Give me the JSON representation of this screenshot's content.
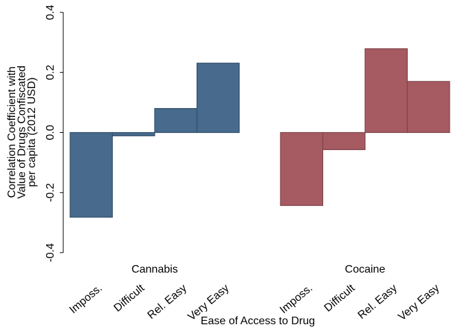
{
  "chart_data": {
    "type": "bar",
    "ylabel": [
      "Correlation Coefficient with",
      "Value of Drugs Confiscated",
      "per capita (2012 USD)"
    ],
    "xlabel": "Ease of Access to Drug",
    "categories": [
      "Imposs.",
      "Difficult",
      "Rel. Easy",
      "Very Easy"
    ],
    "series": [
      {
        "name": "Cannabis",
        "color": "#476a8d",
        "values": [
          -0.282,
          -0.011,
          0.08,
          0.231
        ]
      },
      {
        "name": "Cocaine",
        "color": "#a65a61",
        "values": [
          -0.243,
          -0.057,
          0.279,
          0.17
        ]
      }
    ],
    "ylim": [
      -0.4,
      0.4
    ],
    "yticks": [
      -0.4,
      -0.2,
      {
        "value": 0,
        "label": "0.0"
      },
      0.2,
      0.4
    ],
    "grid": false
  }
}
